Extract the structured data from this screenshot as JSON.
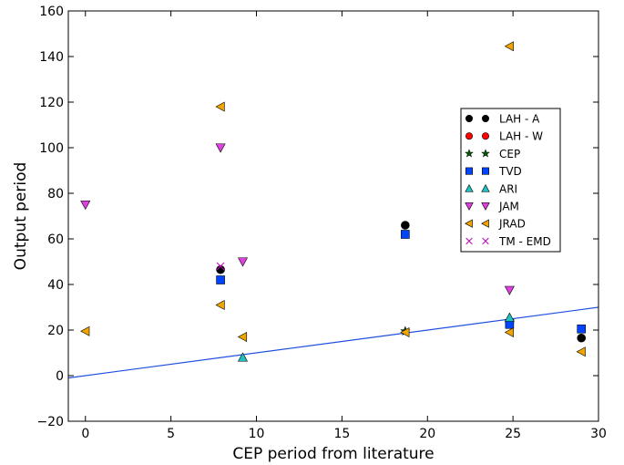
{
  "chart_data": {
    "type": "scatter",
    "xlabel": "CEP period from literature",
    "ylabel": "Output period",
    "xlim": [
      -1,
      30
    ],
    "ylim": [
      -20,
      160
    ],
    "xticks": [
      0,
      5,
      10,
      15,
      20,
      25,
      30
    ],
    "yticks": [
      -20,
      0,
      20,
      40,
      60,
      80,
      100,
      120,
      140,
      160
    ],
    "xtick_labels": [
      "0",
      "5",
      "10",
      "15",
      "20",
      "25",
      "30"
    ],
    "ytick_labels": [
      "−20",
      "0",
      "20",
      "40",
      "60",
      "80",
      "100",
      "120",
      "140",
      "160"
    ],
    "legend_position": "right",
    "grid": false,
    "reference_line": {
      "points": [
        [
          -1,
          -1
        ],
        [
          30,
          30
        ]
      ],
      "color": "#1f4fe0"
    },
    "series": [
      {
        "name": "LAH - A",
        "marker": "circle",
        "color": "#000000",
        "points": [
          [
            7.9,
            46.5
          ],
          [
            18.7,
            66
          ],
          [
            24.8,
            23
          ],
          [
            29,
            16.5
          ]
        ]
      },
      {
        "name": "LAH - W",
        "marker": "circle",
        "color": "#ff0000",
        "points": [
          [
            24.8,
            23.5
          ]
        ]
      },
      {
        "name": "CEP",
        "marker": "star",
        "color": "#006400",
        "points": [
          [
            18.7,
            19.5
          ],
          [
            24.8,
            24
          ]
        ]
      },
      {
        "name": "TVD",
        "marker": "square",
        "color": "#0044ff",
        "points": [
          [
            7.9,
            42
          ],
          [
            18.7,
            62
          ],
          [
            24.8,
            22.5
          ],
          [
            29,
            20.5
          ]
        ]
      },
      {
        "name": "ARI",
        "marker": "triangle-up",
        "color": "#20c0c0",
        "points": [
          [
            9.2,
            8
          ],
          [
            24.8,
            25.5
          ]
        ]
      },
      {
        "name": "JAM",
        "marker": "triangle-down",
        "color": "#e040e0",
        "points": [
          [
            0,
            75
          ],
          [
            7.9,
            100
          ],
          [
            9.2,
            50
          ],
          [
            24.8,
            37.5
          ]
        ]
      },
      {
        "name": "JRAD",
        "marker": "triangle-left",
        "color": "#f0a500",
        "points": [
          [
            0,
            19.5
          ],
          [
            7.9,
            118
          ],
          [
            7.9,
            31
          ],
          [
            9.2,
            17
          ],
          [
            18.7,
            19
          ],
          [
            24.8,
            144.5
          ],
          [
            24.8,
            19
          ],
          [
            29,
            10.5
          ]
        ]
      },
      {
        "name": "TM - EMD",
        "marker": "x",
        "color": "#c000c0",
        "points": [
          [
            7.9,
            48
          ]
        ]
      }
    ]
  }
}
